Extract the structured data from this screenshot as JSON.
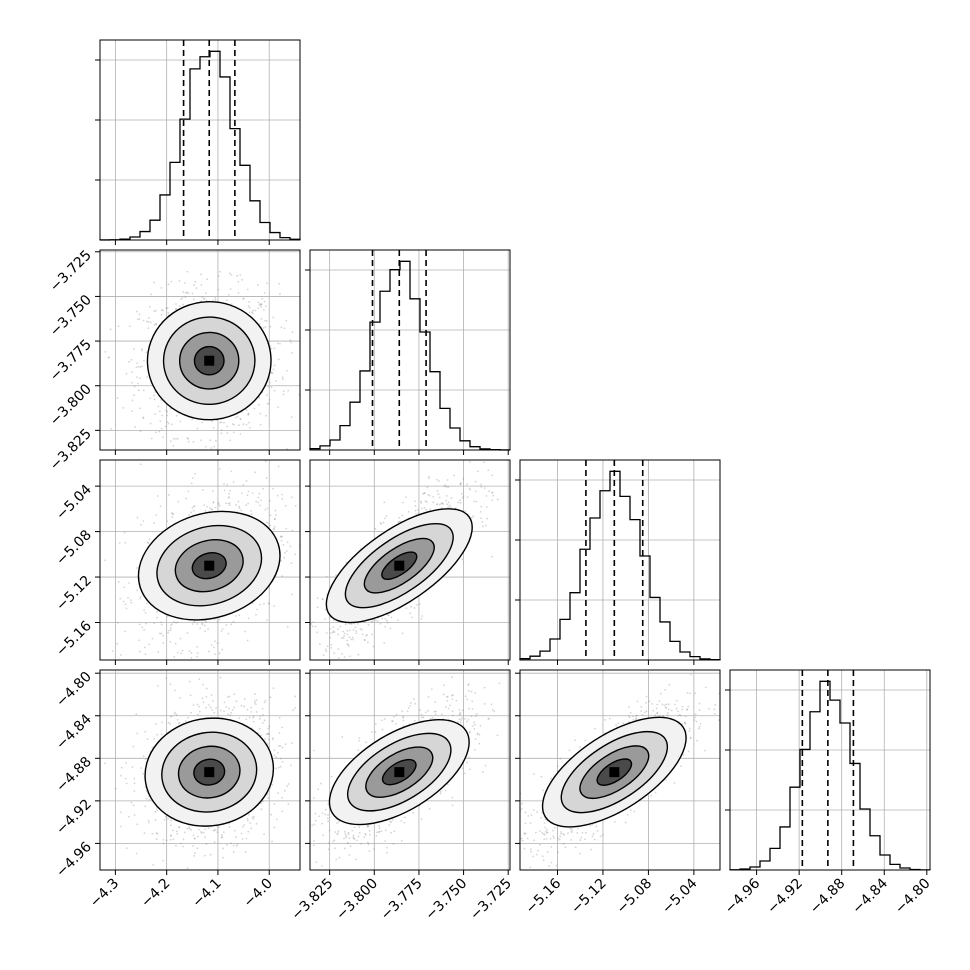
{
  "chart_data": {
    "type": "corner",
    "parameters": [
      {
        "range": [
          -4.33,
          -3.94
        ],
        "ticks": [
          "−4.3",
          "−4.2",
          "−4.1",
          "−4.0"
        ],
        "tick_values": [
          -4.3,
          -4.2,
          -4.1,
          -4.0
        ],
        "quantiles": [
          -4.167,
          -4.117,
          -4.067
        ],
        "mean": -4.117,
        "sd": 0.05
      },
      {
        "range": [
          -3.836,
          -3.724
        ],
        "ticks": [
          "−3.825",
          "−3.800",
          "−3.775",
          "−3.750",
          "−3.725"
        ],
        "tick_values": [
          -3.825,
          -3.8,
          -3.775,
          -3.75,
          -3.725
        ],
        "quantiles": [
          -3.801,
          -3.786,
          -3.771
        ],
        "mean": -3.786,
        "sd": 0.015
      },
      {
        "range": [
          -5.193,
          -5.017
        ],
        "ticks": [
          "−5.16",
          "−5.12",
          "−5.08",
          "−5.04"
        ],
        "tick_values": [
          -5.16,
          -5.12,
          -5.08,
          -5.04
        ],
        "quantiles": [
          -5.135,
          -5.11,
          -5.085
        ],
        "mean": -5.11,
        "sd": 0.025
      },
      {
        "range": [
          -4.985,
          -4.797
        ],
        "ticks": [
          "−4.96",
          "−4.92",
          "−4.88",
          "−4.84",
          "−4.80"
        ],
        "tick_values": [
          -4.96,
          -4.92,
          -4.88,
          -4.84,
          -4.8
        ],
        "quantiles": [
          -4.917,
          -4.893,
          -4.869
        ],
        "mean": -4.893,
        "sd": 0.024
      }
    ],
    "row_ticks": [
      null,
      {
        "labels": [
          "−3.725",
          "−3.750",
          "−3.775",
          "−3.800",
          "−3.825"
        ],
        "values": [
          -3.725,
          -3.75,
          -3.775,
          -3.8,
          -3.825
        ]
      },
      {
        "labels": [
          "−5.04",
          "−5.08",
          "−5.12",
          "−5.16"
        ],
        "values": [
          -5.04,
          -5.08,
          -5.12,
          -5.16
        ]
      },
      {
        "labels": [
          "−4.80",
          "−4.84",
          "−4.88",
          "−4.92",
          "−4.96"
        ],
        "values": [
          -4.8,
          -4.84,
          -4.88,
          -4.92,
          -4.96
        ]
      }
    ],
    "correlations": [
      [
        1,
        0.05,
        0.35,
        0.2
      ],
      [
        0.05,
        1,
        0.8,
        0.7
      ],
      [
        0.35,
        0.8,
        1,
        0.75
      ],
      [
        0.2,
        0.7,
        0.75,
        1
      ]
    ],
    "grid": true,
    "xlabel": "",
    "ylabel": "",
    "title": ""
  }
}
